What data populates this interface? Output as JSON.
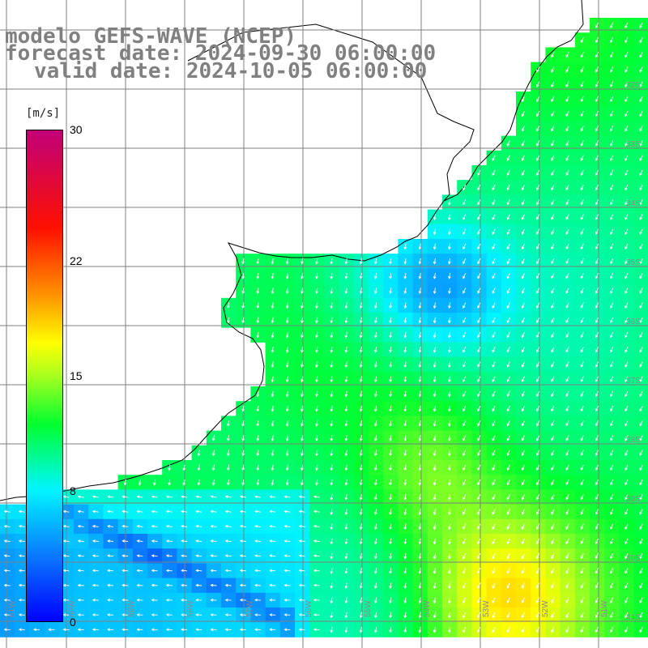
{
  "header": {
    "model": "modelo GEFS-WAVE (NCEP)",
    "forecast_date": "forecast date: 2024-09-30 06:00:00",
    "valid_date": "valid date: 2024-10-05 06:00:00"
  },
  "colorbar": {
    "unit": "[m/s]",
    "min": 0,
    "max": 30,
    "ticks": [
      "30",
      "22",
      "15",
      "8",
      "0"
    ],
    "tick_values": [
      30,
      22,
      15,
      8,
      0
    ],
    "stops": [
      {
        "v": 0,
        "color": "#0000ff"
      },
      {
        "v": 4,
        "color": "#0a78ff"
      },
      {
        "v": 8,
        "color": "#00f5ff"
      },
      {
        "v": 12,
        "color": "#00ff30"
      },
      {
        "v": 15,
        "color": "#a8ff20"
      },
      {
        "v": 17,
        "color": "#ffff00"
      },
      {
        "v": 20,
        "color": "#ff9000"
      },
      {
        "v": 24,
        "color": "#ff1000"
      },
      {
        "v": 30,
        "color": "#c00078"
      }
    ]
  },
  "map": {
    "background": "#ffffff",
    "land_color": "#ffffff",
    "grid_color": "#7f7f7f",
    "arrow_color": "#ffffff",
    "lat_labels": [
      "32S",
      "33S",
      "34S",
      "35S",
      "36S",
      "37S",
      "38S",
      "39S",
      "40S",
      "41S"
    ],
    "lon_labels": [
      "61W",
      "60W",
      "59W",
      "58W",
      "57W",
      "56W",
      "55W",
      "54W",
      "53W",
      "52W",
      "51W"
    ]
  }
}
